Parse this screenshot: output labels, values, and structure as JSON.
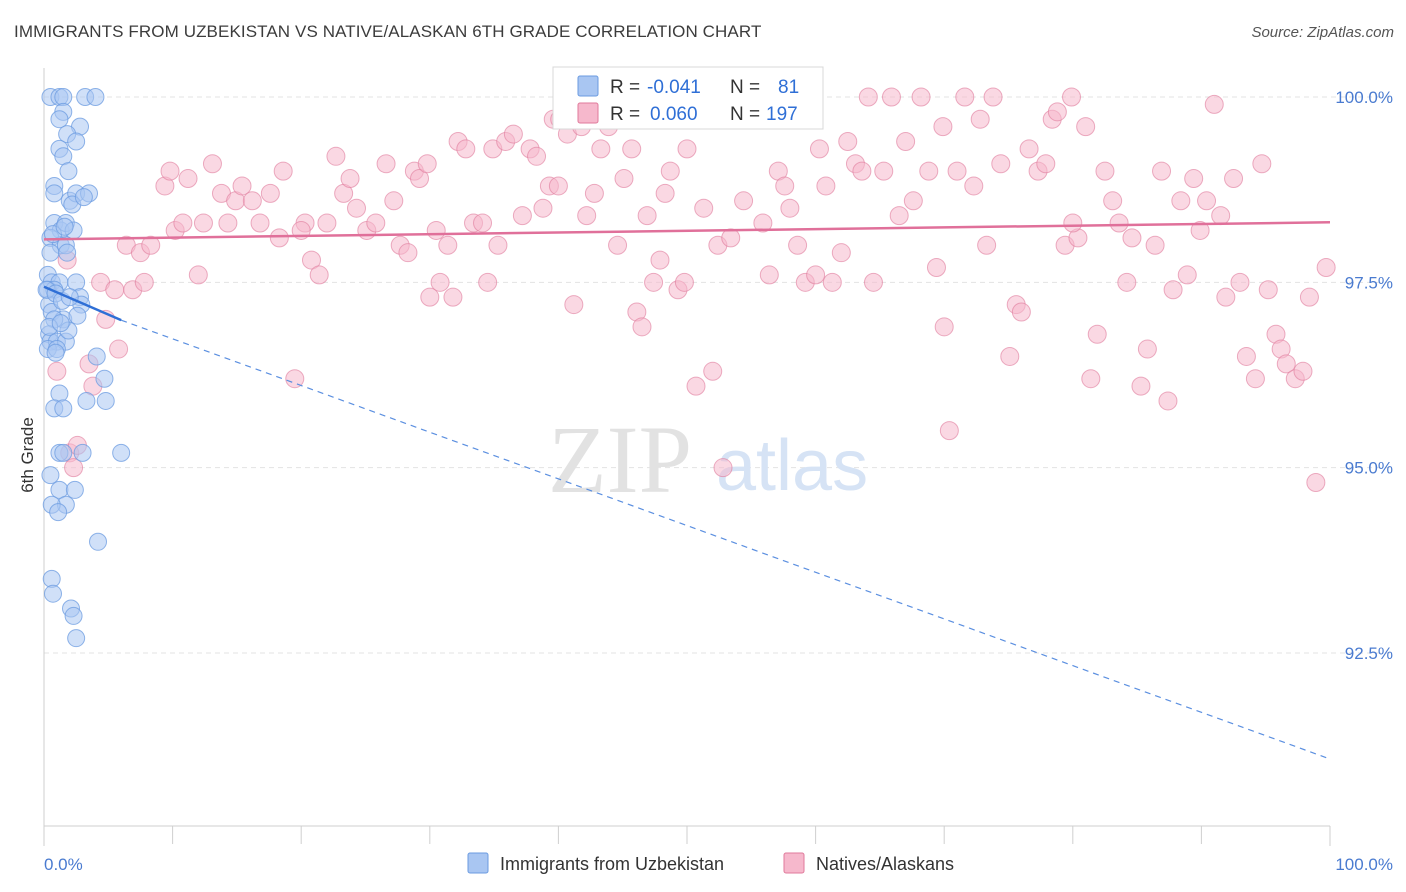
{
  "header": {
    "title": "IMMIGRANTS FROM UZBEKISTAN VS NATIVE/ALASKAN 6TH GRADE CORRELATION CHART",
    "source": "Source: ZipAtlas.com"
  },
  "legend": {
    "rows": [
      {
        "r_label": "R =",
        "r_value": "-0.041",
        "n_label": "N =",
        "n_value": "81",
        "color": "#a9c6f2"
      },
      {
        "r_label": "R =",
        "r_value": "0.060",
        "n_label": "N =",
        "n_value": "197",
        "color": "#f6b8cc"
      }
    ]
  },
  "watermark": {
    "zip": "ZIP",
    "atlas": "atlas"
  },
  "chart_data": {
    "type": "scatter",
    "title": "IMMIGRANTS FROM UZBEKISTAN VS NATIVE/ALASKAN 6TH GRADE CORRELATION CHART",
    "xlabel": "",
    "ylabel": "6th Grade",
    "xlim": [
      0,
      100
    ],
    "ylim": [
      90.8,
      100.2
    ],
    "x_tick_labels": [
      "0.0%",
      "100.0%"
    ],
    "y_tick_labels": [
      "100.0%",
      "97.5%",
      "95.0%",
      "92.5%"
    ],
    "y_ticks": [
      100.0,
      97.5,
      95.0,
      92.5
    ],
    "grid": true,
    "series": [
      {
        "name": "Immigrants from Uzbekistan",
        "color": "#6b9be0",
        "fill": "#a9c6f2",
        "trend": {
          "x0": 0,
          "y0": 97.44,
          "x1": 6,
          "y1": 96.99,
          "dash_to_x": 100,
          "dash_to_y": 91.07
        },
        "points": [
          [
            0.5,
            100.0
          ],
          [
            1.2,
            100.0
          ],
          [
            1.5,
            100.0
          ],
          [
            3.2,
            100.0
          ],
          [
            4.0,
            100.0
          ],
          [
            1.5,
            99.8
          ],
          [
            1.2,
            99.7
          ],
          [
            2.8,
            99.6
          ],
          [
            1.8,
            99.5
          ],
          [
            2.5,
            99.4
          ],
          [
            1.2,
            99.3
          ],
          [
            1.5,
            99.2
          ],
          [
            1.9,
            99.0
          ],
          [
            0.8,
            98.8
          ],
          [
            0.8,
            98.7
          ],
          [
            2.0,
            98.6
          ],
          [
            2.5,
            98.7
          ],
          [
            3.5,
            98.7
          ],
          [
            0.8,
            98.3
          ],
          [
            1.3,
            98.2
          ],
          [
            1.7,
            98.3
          ],
          [
            2.3,
            98.2
          ],
          [
            0.5,
            98.1
          ],
          [
            1.3,
            98.0
          ],
          [
            1.7,
            98.0
          ],
          [
            0.5,
            97.9
          ],
          [
            1.8,
            97.9
          ],
          [
            0.3,
            97.6
          ],
          [
            0.6,
            97.5
          ],
          [
            1.2,
            97.5
          ],
          [
            2.5,
            97.5
          ],
          [
            0.3,
            97.4
          ],
          [
            0.8,
            97.4
          ],
          [
            2.8,
            97.3
          ],
          [
            2.9,
            97.2
          ],
          [
            0.4,
            97.2
          ],
          [
            0.6,
            97.1
          ],
          [
            1.5,
            97.0
          ],
          [
            0.8,
            97.0
          ],
          [
            0.4,
            96.8
          ],
          [
            0.5,
            96.7
          ],
          [
            1.0,
            96.7
          ],
          [
            1.7,
            96.7
          ],
          [
            0.3,
            96.6
          ],
          [
            1.0,
            96.6
          ],
          [
            4.1,
            96.5
          ],
          [
            4.7,
            96.2
          ],
          [
            1.2,
            96.0
          ],
          [
            3.3,
            95.9
          ],
          [
            4.8,
            95.9
          ],
          [
            0.8,
            95.8
          ],
          [
            1.5,
            95.8
          ],
          [
            1.2,
            95.2
          ],
          [
            1.5,
            95.2
          ],
          [
            3.0,
            95.2
          ],
          [
            6.0,
            95.2
          ],
          [
            0.5,
            94.9
          ],
          [
            1.2,
            94.7
          ],
          [
            2.4,
            94.7
          ],
          [
            1.7,
            94.5
          ],
          [
            0.6,
            94.5
          ],
          [
            1.1,
            94.4
          ],
          [
            4.2,
            94.0
          ],
          [
            0.6,
            93.5
          ],
          [
            0.7,
            93.3
          ],
          [
            2.1,
            93.1
          ],
          [
            2.3,
            93.0
          ],
          [
            2.5,
            92.7
          ],
          [
            0.2,
            97.4
          ],
          [
            0.9,
            97.35
          ],
          [
            1.4,
            97.25
          ],
          [
            2.0,
            97.3
          ],
          [
            0.7,
            98.15
          ],
          [
            1.6,
            98.25
          ],
          [
            2.2,
            98.55
          ],
          [
            3.1,
            98.65
          ],
          [
            0.4,
            96.9
          ],
          [
            1.9,
            96.85
          ],
          [
            2.6,
            97.05
          ],
          [
            0.9,
            96.55
          ],
          [
            1.3,
            96.95
          ]
        ]
      },
      {
        "name": "Natives/Alaskans",
        "color": "#e07a9b",
        "fill": "#f6b8cc",
        "trend": {
          "x0": 0,
          "y0": 98.08,
          "x1": 100,
          "y1": 98.31
        },
        "points": [
          [
            1.0,
            96.3
          ],
          [
            1.8,
            97.8
          ],
          [
            2.0,
            95.2
          ],
          [
            2.3,
            95.0
          ],
          [
            2.6,
            95.3
          ],
          [
            3.5,
            96.4
          ],
          [
            3.8,
            96.1
          ],
          [
            4.4,
            97.5
          ],
          [
            4.8,
            97.0
          ],
          [
            5.5,
            97.4
          ],
          [
            5.8,
            96.6
          ],
          [
            6.4,
            98.0
          ],
          [
            6.9,
            97.4
          ],
          [
            7.5,
            97.9
          ],
          [
            7.8,
            97.5
          ],
          [
            8.3,
            98.0
          ],
          [
            9.4,
            98.8
          ],
          [
            9.8,
            99.0
          ],
          [
            10.2,
            98.2
          ],
          [
            10.8,
            98.3
          ],
          [
            11.2,
            98.9
          ],
          [
            12.0,
            97.6
          ],
          [
            12.4,
            98.3
          ],
          [
            13.1,
            99.1
          ],
          [
            13.8,
            98.7
          ],
          [
            14.3,
            98.3
          ],
          [
            14.9,
            98.6
          ],
          [
            15.4,
            98.8
          ],
          [
            16.2,
            98.6
          ],
          [
            16.8,
            98.3
          ],
          [
            17.6,
            98.7
          ],
          [
            18.3,
            98.1
          ],
          [
            18.6,
            99.0
          ],
          [
            19.5,
            96.2
          ],
          [
            20.3,
            98.3
          ],
          [
            20.8,
            97.8
          ],
          [
            21.4,
            97.6
          ],
          [
            22.0,
            98.3
          ],
          [
            22.7,
            99.2
          ],
          [
            23.3,
            98.7
          ],
          [
            23.8,
            98.9
          ],
          [
            24.3,
            98.5
          ],
          [
            25.1,
            98.2
          ],
          [
            25.8,
            98.3
          ],
          [
            26.6,
            99.1
          ],
          [
            27.2,
            98.6
          ],
          [
            27.7,
            98.0
          ],
          [
            28.3,
            97.9
          ],
          [
            28.8,
            99.0
          ],
          [
            29.2,
            98.9
          ],
          [
            29.8,
            99.1
          ],
          [
            30.5,
            98.2
          ],
          [
            30.8,
            97.5
          ],
          [
            31.4,
            98.0
          ],
          [
            31.8,
            97.3
          ],
          [
            32.2,
            99.4
          ],
          [
            32.8,
            99.3
          ],
          [
            33.4,
            98.3
          ],
          [
            34.1,
            98.3
          ],
          [
            34.5,
            97.5
          ],
          [
            34.9,
            99.3
          ],
          [
            35.3,
            98.0
          ],
          [
            35.9,
            99.4
          ],
          [
            36.5,
            99.5
          ],
          [
            37.2,
            98.4
          ],
          [
            37.8,
            99.3
          ],
          [
            38.3,
            99.2
          ],
          [
            38.8,
            98.5
          ],
          [
            39.3,
            98.8
          ],
          [
            39.6,
            99.7
          ],
          [
            40.1,
            99.7
          ],
          [
            40.7,
            99.5
          ],
          [
            41.2,
            97.2
          ],
          [
            41.8,
            99.6
          ],
          [
            42.2,
            98.4
          ],
          [
            42.8,
            98.7
          ],
          [
            43.3,
            99.3
          ],
          [
            43.9,
            99.6
          ],
          [
            44.6,
            98.0
          ],
          [
            45.1,
            98.9
          ],
          [
            45.7,
            99.3
          ],
          [
            46.1,
            97.1
          ],
          [
            46.5,
            96.9
          ],
          [
            46.9,
            98.4
          ],
          [
            47.4,
            97.5
          ],
          [
            47.9,
            97.8
          ],
          [
            48.3,
            98.7
          ],
          [
            48.7,
            99.0
          ],
          [
            49.3,
            97.4
          ],
          [
            49.8,
            97.5
          ],
          [
            50.7,
            96.1
          ],
          [
            51.3,
            98.5
          ],
          [
            52.0,
            96.3
          ],
          [
            52.4,
            98.0
          ],
          [
            52.8,
            95.0
          ],
          [
            53.4,
            98.1
          ],
          [
            53.8,
            99.7
          ],
          [
            54.4,
            98.6
          ],
          [
            55.3,
            99.8
          ],
          [
            55.9,
            98.3
          ],
          [
            56.4,
            97.6
          ],
          [
            57.1,
            99.0
          ],
          [
            57.6,
            98.8
          ],
          [
            58.0,
            98.5
          ],
          [
            58.6,
            98.0
          ],
          [
            59.2,
            97.5
          ],
          [
            59.6,
            100.0
          ],
          [
            60.3,
            99.3
          ],
          [
            60.8,
            98.8
          ],
          [
            61.3,
            97.5
          ],
          [
            62.0,
            97.9
          ],
          [
            62.5,
            99.4
          ],
          [
            63.1,
            99.1
          ],
          [
            63.6,
            99.0
          ],
          [
            64.1,
            100.0
          ],
          [
            64.5,
            97.5
          ],
          [
            65.3,
            99.0
          ],
          [
            65.9,
            100.0
          ],
          [
            66.5,
            98.4
          ],
          [
            67.0,
            99.4
          ],
          [
            67.6,
            98.6
          ],
          [
            68.2,
            100.0
          ],
          [
            68.8,
            99.0
          ],
          [
            69.4,
            97.7
          ],
          [
            69.9,
            99.6
          ],
          [
            70.4,
            95.5
          ],
          [
            71.0,
            99.0
          ],
          [
            71.6,
            100.0
          ],
          [
            72.3,
            98.8
          ],
          [
            72.8,
            99.7
          ],
          [
            73.3,
            98.0
          ],
          [
            73.8,
            100.0
          ],
          [
            74.4,
            99.1
          ],
          [
            75.1,
            96.5
          ],
          [
            75.6,
            97.2
          ],
          [
            76.0,
            97.1
          ],
          [
            76.6,
            99.3
          ],
          [
            77.3,
            99.0
          ],
          [
            77.9,
            99.1
          ],
          [
            78.4,
            99.7
          ],
          [
            78.8,
            99.8
          ],
          [
            79.4,
            98.0
          ],
          [
            79.9,
            100.0
          ],
          [
            80.4,
            98.1
          ],
          [
            81.0,
            99.6
          ],
          [
            81.4,
            96.2
          ],
          [
            81.9,
            96.8
          ],
          [
            82.5,
            99.0
          ],
          [
            83.1,
            98.6
          ],
          [
            83.6,
            98.3
          ],
          [
            84.2,
            97.5
          ],
          [
            84.6,
            98.1
          ],
          [
            85.3,
            96.1
          ],
          [
            85.8,
            96.6
          ],
          [
            86.4,
            98.0
          ],
          [
            86.9,
            99.0
          ],
          [
            87.4,
            95.9
          ],
          [
            87.8,
            97.4
          ],
          [
            88.4,
            98.6
          ],
          [
            88.9,
            97.6
          ],
          [
            89.4,
            98.9
          ],
          [
            89.9,
            98.2
          ],
          [
            90.4,
            98.6
          ],
          [
            91.0,
            99.9
          ],
          [
            91.5,
            98.4
          ],
          [
            91.9,
            97.3
          ],
          [
            92.5,
            98.9
          ],
          [
            93.0,
            97.5
          ],
          [
            93.5,
            96.5
          ],
          [
            94.2,
            96.2
          ],
          [
            94.7,
            99.1
          ],
          [
            95.2,
            97.4
          ],
          [
            95.8,
            96.8
          ],
          [
            96.2,
            96.6
          ],
          [
            96.6,
            96.4
          ],
          [
            97.3,
            96.2
          ],
          [
            97.9,
            96.3
          ],
          [
            98.4,
            97.3
          ],
          [
            98.9,
            94.8
          ],
          [
            99.7,
            97.7
          ],
          [
            20.0,
            98.2
          ],
          [
            40.0,
            98.8
          ],
          [
            60.0,
            97.6
          ],
          [
            80.0,
            98.3
          ],
          [
            30.0,
            97.3
          ],
          [
            70.0,
            96.9
          ],
          [
            50.0,
            99.3
          ]
        ]
      }
    ]
  },
  "bottom_legend": [
    {
      "label": "Immigrants from Uzbekistan",
      "color": "#a9c6f2"
    },
    {
      "label": "Natives/Alaskans",
      "color": "#f6b8cc"
    }
  ]
}
